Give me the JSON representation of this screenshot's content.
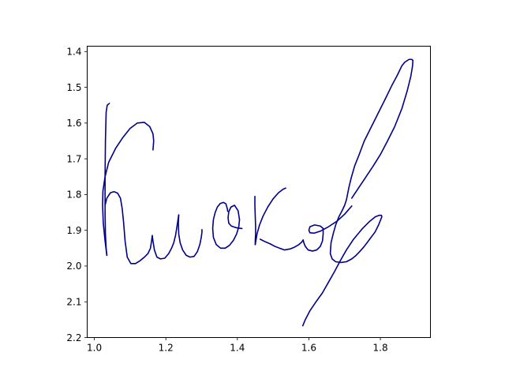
{
  "chart_data": {
    "type": "line",
    "title": "",
    "xlabel": "",
    "ylabel": "",
    "xlim": [
      0.98,
      1.94
    ],
    "ylim": [
      2.2,
      1.385
    ],
    "y_inverted": true,
    "grid": false,
    "legend": "none",
    "x_ticks": [
      {
        "value": 1.0,
        "label": "1.0"
      },
      {
        "value": 1.2,
        "label": "1.2"
      },
      {
        "value": 1.4,
        "label": "1.4"
      },
      {
        "value": 1.6,
        "label": "1.6"
      },
      {
        "value": 1.8,
        "label": "1.8"
      }
    ],
    "y_ticks": [
      {
        "value": 1.4,
        "label": "1.4"
      },
      {
        "value": 1.5,
        "label": "1.5"
      },
      {
        "value": 1.6,
        "label": "1.6"
      },
      {
        "value": 1.7,
        "label": "1.7"
      },
      {
        "value": 1.8,
        "label": "1.8"
      },
      {
        "value": 1.9,
        "label": "1.9"
      },
      {
        "value": 2.0,
        "label": "2.0"
      },
      {
        "value": 2.1,
        "label": "2.1"
      },
      {
        "value": 2.2,
        "label": "2.2"
      }
    ],
    "color": "#00008b",
    "series": [
      {
        "x": [
          1.042,
          1.036,
          1.033,
          1.031,
          1.03,
          1.03,
          1.031,
          1.033,
          1.035
        ],
        "y": [
          1.545,
          1.55,
          1.57,
          1.65,
          1.75,
          1.85,
          1.91,
          1.95,
          1.97
        ]
      },
      {
        "x": [
          1.035,
          1.03,
          1.025,
          1.023,
          1.024,
          1.03,
          1.04,
          1.06,
          1.08,
          1.1,
          1.12,
          1.14,
          1.155,
          1.164,
          1.166,
          1.164
        ],
        "y": [
          1.97,
          1.93,
          1.88,
          1.83,
          1.79,
          1.75,
          1.71,
          1.67,
          1.64,
          1.615,
          1.6,
          1.598,
          1.61,
          1.63,
          1.65,
          1.675
        ]
      },
      {
        "x": [
          1.03,
          1.035,
          1.045,
          1.055,
          1.065,
          1.073,
          1.078,
          1.082,
          1.086,
          1.092,
          1.102,
          1.115,
          1.128,
          1.14,
          1.15,
          1.157,
          1.16,
          1.162
        ],
        "y": [
          1.83,
          1.81,
          1.795,
          1.792,
          1.796,
          1.81,
          1.84,
          1.88,
          1.93,
          1.975,
          1.993,
          1.993,
          1.985,
          1.975,
          1.965,
          1.95,
          1.93,
          1.915
        ]
      },
      {
        "x": [
          1.162,
          1.164,
          1.168,
          1.175,
          1.185,
          1.197,
          1.208,
          1.216,
          1.222,
          1.227,
          1.231,
          1.234,
          1.236
        ],
        "y": [
          1.915,
          1.93,
          1.955,
          1.975,
          1.98,
          1.978,
          1.965,
          1.95,
          1.935,
          1.915,
          1.89,
          1.87,
          1.857
        ]
      },
      {
        "x": [
          1.236,
          1.235,
          1.236,
          1.24,
          1.247,
          1.257,
          1.268,
          1.279,
          1.288,
          1.295,
          1.299,
          1.301,
          1.301
        ],
        "y": [
          1.857,
          1.88,
          1.91,
          1.935,
          1.955,
          1.97,
          1.975,
          1.973,
          1.96,
          1.94,
          1.92,
          1.905,
          1.898
        ]
      },
      {
        "x": [
          1.373,
          1.372,
          1.368,
          1.361,
          1.352,
          1.344,
          1.338,
          1.333,
          1.331,
          1.333,
          1.341,
          1.353,
          1.366,
          1.378,
          1.389,
          1.398,
          1.404,
          1.406
        ],
        "y": [
          1.847,
          1.84,
          1.826,
          1.822,
          1.825,
          1.835,
          1.85,
          1.87,
          1.895,
          1.92,
          1.94,
          1.95,
          1.95,
          1.942,
          1.928,
          1.91,
          1.89,
          1.87
        ]
      },
      {
        "x": [
          1.406,
          1.402,
          1.392,
          1.382,
          1.376,
          1.374,
          1.376,
          1.383,
          1.394,
          1.404,
          1.413
        ],
        "y": [
          1.87,
          1.845,
          1.83,
          1.835,
          1.848,
          1.865,
          1.88,
          1.888,
          1.892,
          1.894,
          1.895
        ]
      },
      {
        "x": [
          1.449,
          1.449,
          1.45,
          1.451,
          1.451,
          1.45,
          1.45
        ],
        "y": [
          1.805,
          1.83,
          1.86,
          1.89,
          1.91,
          1.93,
          1.94
        ]
      },
      {
        "x": [
          1.45,
          1.455,
          1.462,
          1.472,
          1.485,
          1.5,
          1.515,
          1.528,
          1.535
        ],
        "y": [
          1.94,
          1.91,
          1.885,
          1.86,
          1.835,
          1.812,
          1.795,
          1.785,
          1.782
        ]
      },
      {
        "x": [
          1.464,
          1.478,
          1.492,
          1.505,
          1.518,
          1.532,
          1.548,
          1.56,
          1.572,
          1.58,
          1.584
        ],
        "y": [
          1.925,
          1.932,
          1.938,
          1.945,
          1.95,
          1.955,
          1.952,
          1.947,
          1.94,
          1.933,
          1.927
        ]
      },
      {
        "x": [
          1.584,
          1.586,
          1.59,
          1.598,
          1.61,
          1.622,
          1.632,
          1.638,
          1.64,
          1.64
        ],
        "y": [
          1.927,
          1.935,
          1.945,
          1.955,
          1.958,
          1.955,
          1.945,
          1.93,
          1.91,
          1.895
        ]
      },
      {
        "x": [
          1.64,
          1.632,
          1.616,
          1.603,
          1.6,
          1.603,
          1.615,
          1.633,
          1.655,
          1.678,
          1.7,
          1.72
        ],
        "y": [
          1.895,
          1.888,
          1.885,
          1.89,
          1.9,
          1.907,
          1.908,
          1.902,
          1.89,
          1.875,
          1.855,
          1.832
        ]
      },
      {
        "x": [
          1.72,
          1.74,
          1.76,
          1.78,
          1.8,
          1.82,
          1.84,
          1.86,
          1.875,
          1.885,
          1.89,
          1.891,
          1.888,
          1.88,
          1.868,
          1.86,
          1.848,
          1.832,
          1.815,
          1.795,
          1.775,
          1.755,
          1.74,
          1.728,
          1.718,
          1.712,
          1.708,
          1.705,
          1.7,
          1.693,
          1.684,
          1.675,
          1.668,
          1.662,
          1.66,
          1.665,
          1.675,
          1.69,
          1.705,
          1.72,
          1.73,
          1.74,
          1.755,
          1.77,
          1.785,
          1.795,
          1.801,
          1.804,
          1.803,
          1.797,
          1.786,
          1.77,
          1.75,
          1.725,
          1.705,
          1.688,
          1.672,
          1.655,
          1.638,
          1.62,
          1.603,
          1.59,
          1.583
        ],
        "y": [
          1.81,
          1.78,
          1.75,
          1.72,
          1.688,
          1.65,
          1.61,
          1.56,
          1.51,
          1.47,
          1.44,
          1.425,
          1.422,
          1.422,
          1.43,
          1.44,
          1.465,
          1.495,
          1.53,
          1.57,
          1.61,
          1.65,
          1.69,
          1.72,
          1.755,
          1.78,
          1.8,
          1.815,
          1.83,
          1.845,
          1.862,
          1.885,
          1.91,
          1.935,
          1.965,
          1.98,
          1.988,
          1.99,
          1.988,
          1.98,
          1.972,
          1.962,
          1.945,
          1.925,
          1.905,
          1.885,
          1.87,
          1.862,
          1.858,
          1.858,
          1.862,
          1.875,
          1.895,
          1.925,
          1.955,
          1.985,
          2.015,
          2.045,
          2.075,
          2.1,
          2.125,
          2.15,
          2.167
        ]
      }
    ]
  }
}
